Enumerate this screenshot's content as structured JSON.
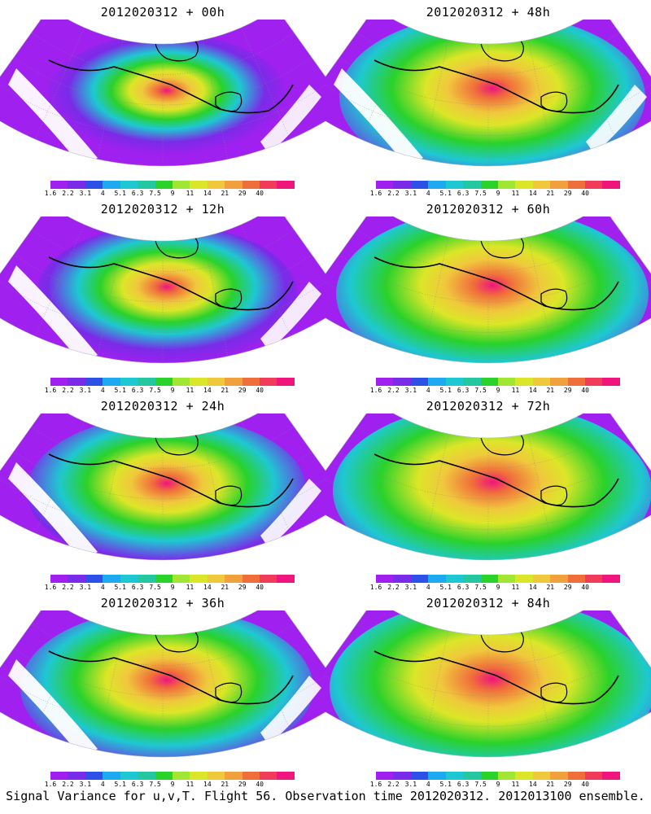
{
  "colorbar": {
    "labels": [
      "1.6",
      "2.2",
      "3.1",
      "4",
      "5.1",
      "6.3",
      "7.5",
      "9",
      "11",
      "14",
      "21",
      "29",
      "40"
    ],
    "colors": [
      "#a020f0",
      "#7a2be8",
      "#2d50e6",
      "#1eaaf0",
      "#1ec8d2",
      "#23c8a0",
      "#2ad22a",
      "#a0e632",
      "#dce628",
      "#f0c83c",
      "#f0a03c",
      "#f06e3c",
      "#f03c5a",
      "#f0147d"
    ]
  },
  "panels": [
    {
      "title": "2012020312 + 00h",
      "lead": "00h",
      "peak": 0.9,
      "spread": 0.35
    },
    {
      "title": "2012020312 + 48h",
      "lead": "48h",
      "peak": 0.8,
      "spread": 0.85
    },
    {
      "title": "2012020312 + 12h",
      "lead": "12h",
      "peak": 0.85,
      "spread": 0.5
    },
    {
      "title": "2012020312 + 60h",
      "lead": "60h",
      "peak": 0.8,
      "spread": 0.9
    },
    {
      "title": "2012020312 + 24h",
      "lead": "24h",
      "peak": 0.8,
      "spread": 0.65
    },
    {
      "title": "2012020312 + 72h",
      "lead": "72h",
      "peak": 0.8,
      "spread": 0.95
    },
    {
      "title": "2012020312 + 36h",
      "lead": "36h",
      "peak": 0.75,
      "spread": 0.75
    },
    {
      "title": "2012020312 + 84h",
      "lead": "84h",
      "peak": 0.8,
      "spread": 1.0
    }
  ],
  "caption": "Signal Variance for u,v,T. Flight 56. Observation time 2012020312. 2012013100 ensemble."
}
